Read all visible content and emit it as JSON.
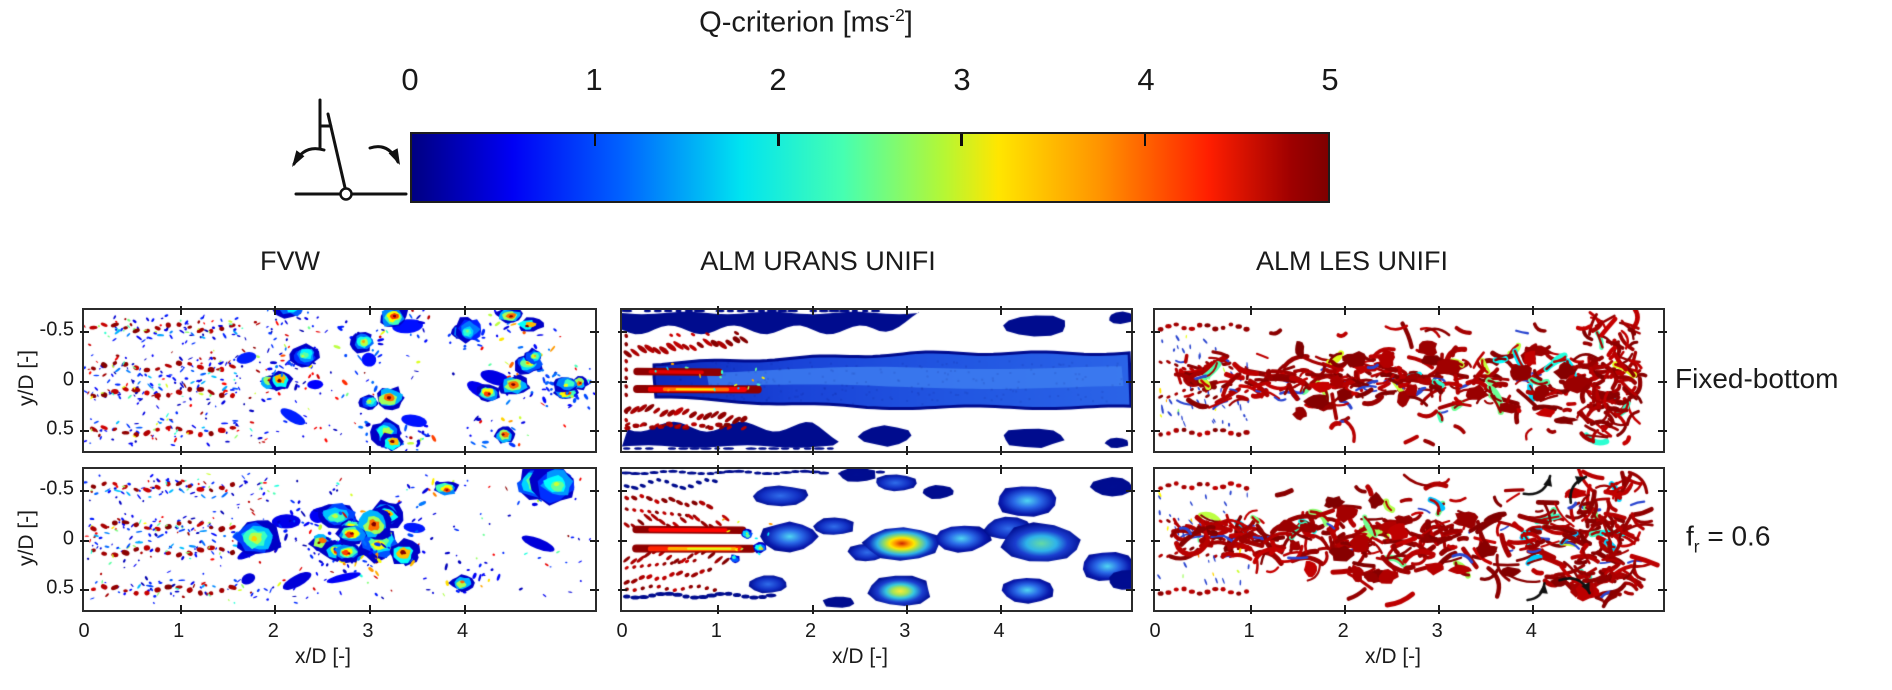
{
  "figure": {
    "background": "#ffffff"
  },
  "colorbar": {
    "title_main": "Q-criterion [ms",
    "title_sup": "-2",
    "title_close": "]",
    "title_full": "Q-criterion [ms-2]",
    "tick_labels": [
      "0",
      "1",
      "2",
      "3",
      "4",
      "5"
    ],
    "value_range": [
      0,
      5
    ],
    "colormap": "jet",
    "gradient_hex": [
      "#000082",
      "#0000f5",
      "#0063ff",
      "#00e4f0",
      "#45ffb2",
      "#b4f735",
      "#ffe600",
      "#ff9400",
      "#ff1e00",
      "#9e0000",
      "#800000"
    ]
  },
  "icon": {
    "meaning": "platform pitch (rocking) motion schematic of turbine tower on pivot"
  },
  "labels": {
    "row2_f": "f",
    "row2_sub": "r",
    "row2_rest": " = 0.6"
  },
  "chart_data": {
    "type": "heatmap",
    "title": "Q-criterion [ms-2]",
    "colormap": "jet",
    "value_range_ms2": [
      0,
      5
    ],
    "colorbar_ticks": [
      0,
      1,
      2,
      3,
      4,
      5
    ],
    "grid": {
      "columns": [
        "FVW",
        "ALM URANS UNIFI",
        "ALM LES UNIFI"
      ],
      "rows": [
        "Fixed-bottom",
        "fr = 0.6"
      ]
    },
    "x_axis": {
      "label": "x/D [-]",
      "ticks": [
        0,
        1,
        2,
        3,
        4
      ],
      "range": [
        0,
        5.4
      ]
    },
    "y_axis": {
      "label": "y/D [-]",
      "ticks": [
        -0.5,
        0,
        0.5
      ],
      "range": [
        -0.7,
        0.72
      ],
      "inverted": true
    },
    "panels": [
      {
        "id": "fvw-fixed",
        "column": "FVW",
        "row": "Fixed-bottom",
        "style": "fvw",
        "seed": 11,
        "big": false,
        "ylabels": true,
        "xlabels": false,
        "description": "Fine speckled vortices; ordered rows of red tip/root vortex cores for x/D<1.6 at y/D about ±0.5 and ±0.12; scattered blue patches with rainbow cores downstream"
      },
      {
        "id": "urans-fixed",
        "column": "ALM URANS UNIFI",
        "row": "Fixed-bottom",
        "style": "urans_fixed",
        "seed": 22,
        "ylabels": false,
        "xlabels": false,
        "description": "Smooth blue wake column along centreline; dark-red root vortex streaks at x/D<1.4, y/D about ±0.1; dark navy tip-vortex bands near y/D ±0.55"
      },
      {
        "id": "les-fixed",
        "column": "ALM LES UNIFI",
        "row": "Fixed-bottom",
        "style": "les",
        "seed": 33,
        "grow": false,
        "ylabels": false,
        "xlabels": false,
        "description": "Dense fine dark-red vortex filaments with blue flecks; ordered vortex rows for x/D<1 breaking into turbulence downstream; white margin near right edge"
      },
      {
        "id": "fvw-fr06",
        "column": "FVW",
        "row": "fr = 0.6",
        "style": "fvw",
        "seed": 44,
        "big": true,
        "ylabels": true,
        "xlabels": true,
        "description": "As FVW fixed-bottom but with larger meandering vortex clusters with strong rainbow (red/yellow) cores at x/D 1.8-4"
      },
      {
        "id": "urans-fr06",
        "column": "ALM URANS UNIFI",
        "row": "fr = 0.6",
        "style": "urans_fr06",
        "seed": 55,
        "ylabels": false,
        "xlabels": true,
        "description": "Wake broken into large smooth blue lobes with cyan/yellow/orange-red cores; dark-red root streaks to x/D 1.4"
      },
      {
        "id": "les-fr06",
        "column": "ALM LES UNIFI",
        "row": "fr = 0.6",
        "style": "les",
        "seed": 66,
        "grow": true,
        "ylabels": false,
        "xlabels": true,
        "description": "Dense dark-red filaments, wake widening downstream; black curved arrows near x/D 4-4.6 marking vortex motion",
        "arrows": [
          {
            "x1": 3.92,
            "y1": -0.45,
            "x2": 4.2,
            "y2": -0.63,
            "bend": 0.45
          },
          {
            "x1": 4.42,
            "y1": -0.36,
            "x2": 4.58,
            "y2": -0.62,
            "bend": -0.4
          },
          {
            "x1": 4.3,
            "y1": 0.42,
            "x2": 4.62,
            "y2": 0.55,
            "bend": -0.45
          },
          {
            "x1": 3.96,
            "y1": 0.62,
            "x2": 4.14,
            "y2": 0.45,
            "bend": 0.4
          }
        ]
      }
    ]
  }
}
